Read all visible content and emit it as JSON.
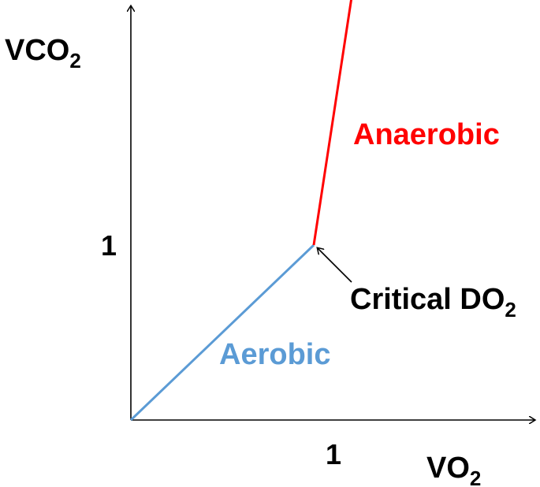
{
  "chart_data": {
    "type": "line",
    "xlabel": {
      "main": "VO",
      "sub": "2"
    },
    "ylabel": {
      "main": "VCO",
      "sub": "2"
    },
    "xlim": [
      0,
      2.1
    ],
    "ylim": [
      0,
      3.6
    ],
    "x_ticks": [
      {
        "value": 1,
        "label": "1"
      }
    ],
    "y_ticks": [
      {
        "value": 1,
        "label": "1"
      }
    ],
    "grid": false,
    "legend": "none",
    "series": [
      {
        "label": "Aerobic",
        "color": "#5B9BD5",
        "points": [
          {
            "x": 0,
            "y": 0
          },
          {
            "x": 1,
            "y": 1
          }
        ]
      },
      {
        "label": "Anaerobic",
        "color": "#FF0000",
        "points": [
          {
            "x": 1,
            "y": 1
          },
          {
            "x": 1.38,
            "y": 3.6
          }
        ]
      }
    ],
    "annotations": [
      {
        "text": "Critical DO",
        "sub": "2",
        "target": {
          "x": 1,
          "y": 1
        }
      }
    ]
  }
}
